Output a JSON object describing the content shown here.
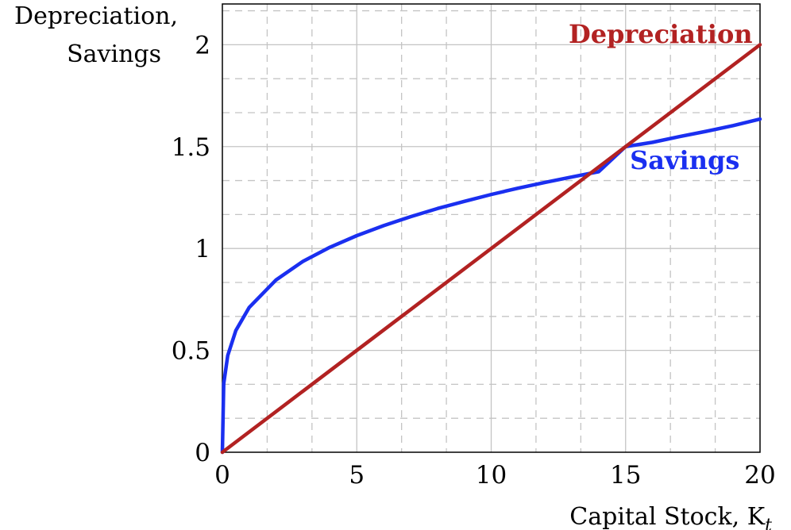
{
  "chart_data": {
    "type": "line",
    "xlabel": "Capital Stock, K",
    "xlabel_subscript": "t",
    "ylabel_line1": "Depreciation,",
    "ylabel_line2": "Savings",
    "xlim": [
      0,
      20
    ],
    "ylim": [
      0,
      2.2
    ],
    "x_ticks": [
      0,
      5,
      10,
      15,
      20
    ],
    "x_tick_labels": [
      "0",
      "5",
      "10",
      "15",
      "20"
    ],
    "y_ticks": [
      0,
      0.5,
      1,
      1.5,
      2
    ],
    "y_tick_labels": [
      "0",
      "0.5",
      "1",
      "1.5",
      "2"
    ],
    "grid": true,
    "series": [
      {
        "name": "Savings",
        "color": "#1a2ff0",
        "x": [
          0,
          0.05,
          0.2,
          0.5,
          1,
          2,
          3,
          4,
          5,
          6,
          7,
          8,
          9,
          10,
          11,
          12,
          13,
          14,
          15,
          16,
          17,
          18,
          19,
          20
        ],
        "y": [
          0,
          0.336,
          0.475,
          0.597,
          0.711,
          0.846,
          0.937,
          1.006,
          1.063,
          1.112,
          1.156,
          1.196,
          1.231,
          1.265,
          1.296,
          1.324,
          1.351,
          1.377,
          1.5,
          1.521,
          1.549,
          1.575,
          1.603,
          1.635
        ]
      },
      {
        "name": "Depreciation",
        "color": "#b22222",
        "x": [
          0,
          20
        ],
        "y": [
          0,
          2
        ]
      }
    ],
    "annotations": [
      {
        "text": "Depreciation",
        "color": "#b22222",
        "x": 16.3,
        "y": 2.01
      },
      {
        "text": "Savings",
        "color": "#1a2ff0",
        "x": 17.2,
        "y": 1.39
      }
    ]
  }
}
